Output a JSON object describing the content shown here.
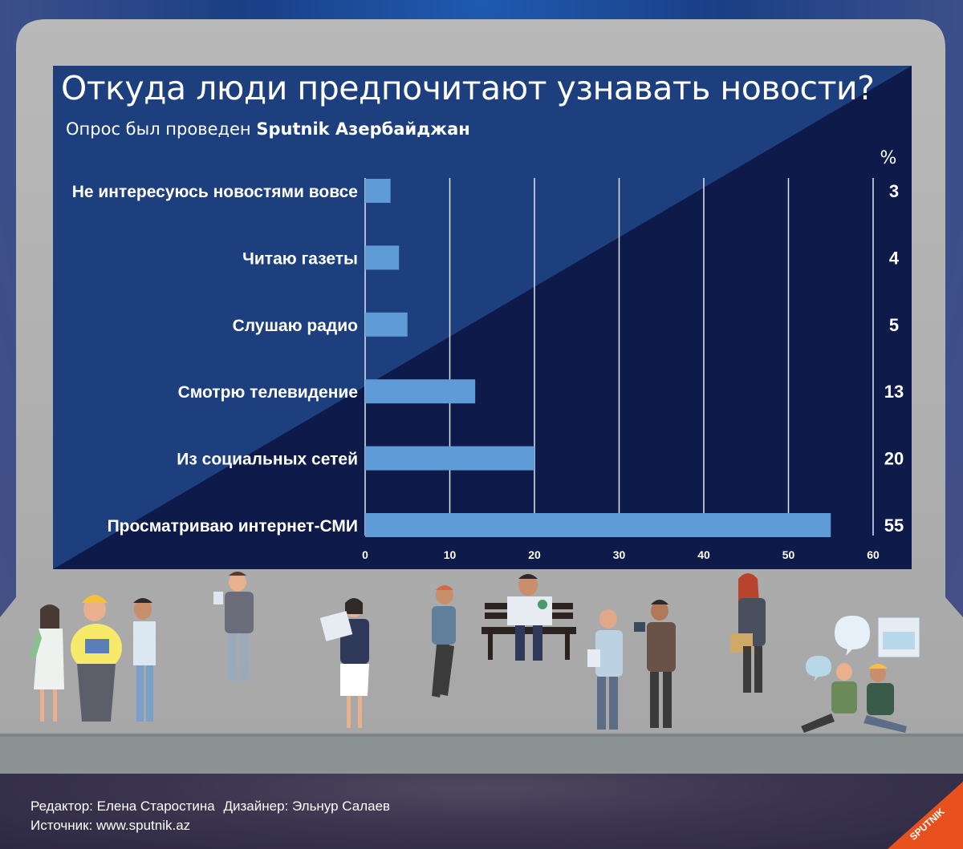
{
  "chart_data": {
    "type": "bar",
    "orientation": "horizontal",
    "title": "Откуда люди предпочитают узнавать новости?",
    "subtitle": "Опрос был проведен",
    "subtitle_bold": "Sputnik Азербайджан",
    "unit_label": "%",
    "categories": [
      "Не интересуюсь новостями вовсе",
      "Читаю газеты",
      "Слушаю радио",
      "Смотрю телевидение",
      "Из социальных сетей",
      "Просматриваю интернет-СМИ"
    ],
    "values": [
      3,
      4,
      5,
      13,
      20,
      55
    ],
    "value_labels": [
      "3",
      "4",
      "5",
      "13",
      "20",
      "55"
    ],
    "xlim": [
      0,
      60
    ],
    "xticks": [
      0,
      10,
      20,
      30,
      40,
      50,
      60
    ],
    "xtick_labels": [
      "0",
      "10",
      "20",
      "30",
      "40",
      "50",
      "60"
    ],
    "grid": true,
    "colors": {
      "bar": "#5f9bd6",
      "panel_light": "#1d3f7e",
      "panel_dark": "#0e1a4a",
      "grid": "#dfe6f2",
      "text": "#ffffff"
    }
  },
  "credits": {
    "editor": "Редактор: Елена Старостина",
    "designer": "Дизайнер: Эльнур Салаев",
    "source": "Источник: www.sputnik.az"
  },
  "logo": {
    "text": "SPUTNIK",
    "color": "#e8501e"
  },
  "illustration": {
    "icon": "people-reading-news-illustration"
  }
}
